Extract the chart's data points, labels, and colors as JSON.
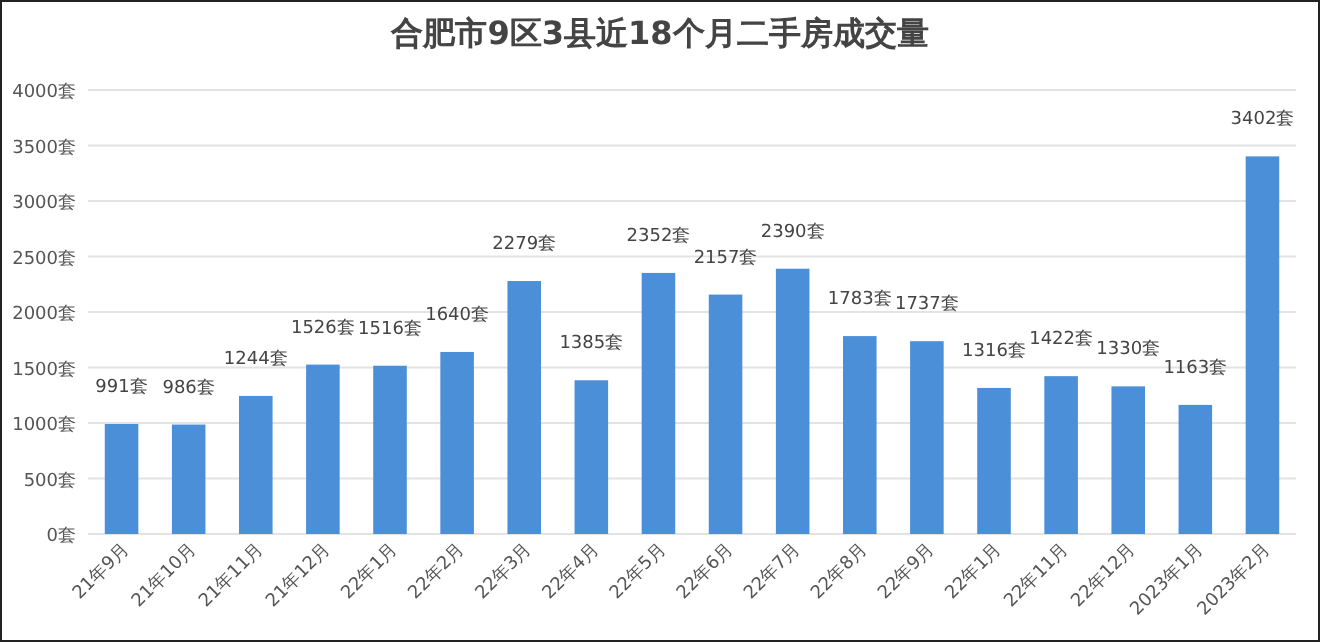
{
  "chart_data": {
    "type": "bar",
    "title": "合肥市9区3县近18个月二手房成交量",
    "categories": [
      "21年9月",
      "21年10月",
      "21年11月",
      "21年12月",
      "22年1月",
      "22年2月",
      "22年3月",
      "22年4月",
      "22年5月",
      "22年6月",
      "22年7月",
      "22年8月",
      "22年9月",
      "22年1月",
      "22年11月",
      "22年12月",
      "2023年1月",
      "2023年2月"
    ],
    "values": [
      991,
      986,
      1244,
      1526,
      1516,
      1640,
      2279,
      1385,
      2352,
      2157,
      2390,
      1783,
      1737,
      1316,
      1422,
      1330,
      1163,
      3402
    ],
    "value_labels": [
      "991套",
      "986套",
      "1244套",
      "1526套",
      "1516套",
      "1640套",
      "2279套",
      "1385套",
      "2352套",
      "2157套",
      "2390套",
      "1783套",
      "1737套",
      "1316套",
      "1422套",
      "1330套",
      "1163套",
      "3402套"
    ],
    "color": "#4a8fd8",
    "ylim": [
      0,
      4000
    ],
    "yticks": [
      {
        "value": 0,
        "label": "0套"
      },
      {
        "value": 500,
        "label": "500套"
      },
      {
        "value": 1000,
        "label": "1000套"
      },
      {
        "value": 1500,
        "label": "1500套"
      },
      {
        "value": 2000,
        "label": "2000套"
      },
      {
        "value": 2500,
        "label": "2500套"
      },
      {
        "value": 3000,
        "label": "3000套"
      },
      {
        "value": 3500,
        "label": "3500套"
      },
      {
        "value": 4000,
        "label": "4000套"
      }
    ],
    "grid": "y"
  }
}
